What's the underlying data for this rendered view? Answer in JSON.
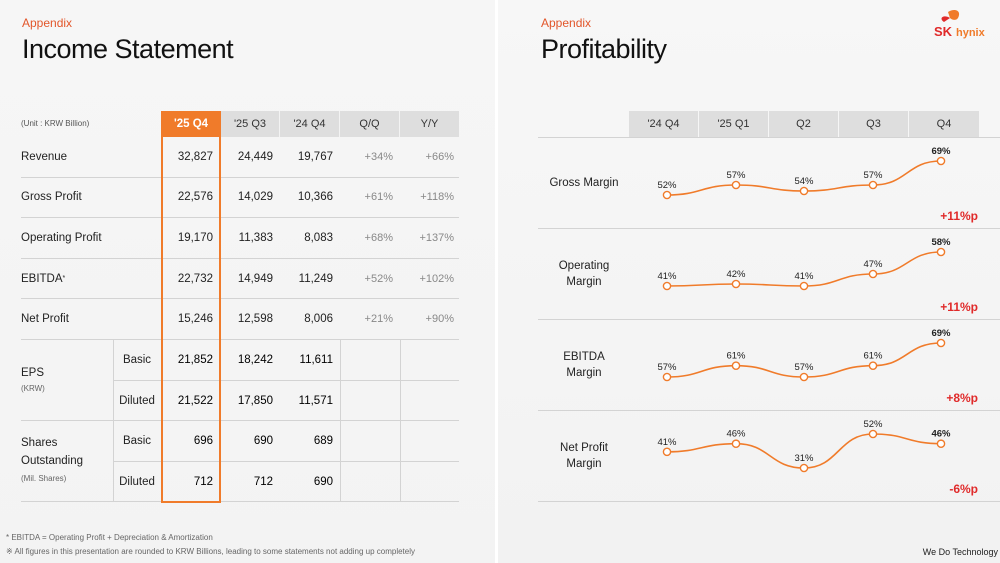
{
  "left": {
    "kicker": "Appendix",
    "title": "Income Statement",
    "unit": "(Unit : KRW Billion)",
    "columns": [
      "'25 Q4",
      "'25 Q3",
      "'24 Q4",
      "Q/Q",
      "Y/Y"
    ],
    "rows": [
      {
        "label": "Revenue",
        "values": [
          "32,827",
          "24,449",
          "19,767",
          "+34%",
          "+66%"
        ]
      },
      {
        "label": "Gross Profit",
        "values": [
          "22,576",
          "14,029",
          "10,366",
          "+61%",
          "+118%"
        ]
      },
      {
        "label": "Operating Profit",
        "values": [
          "19,170",
          "11,383",
          "8,083",
          "+68%",
          "+137%"
        ]
      },
      {
        "label": "EBITDA",
        "label_sup": "*",
        "values": [
          "22,732",
          "14,949",
          "11,249",
          "+52%",
          "+102%"
        ]
      },
      {
        "label": "Net Profit",
        "values": [
          "15,246",
          "12,598",
          "8,006",
          "+21%",
          "+90%"
        ]
      }
    ],
    "eps": {
      "label": "EPS",
      "unit": "(KRW)",
      "basic": {
        "label": "Basic",
        "values": [
          "21,852",
          "18,242",
          "11,611"
        ]
      },
      "diluted": {
        "label": "Diluted",
        "values": [
          "21,522",
          "17,850",
          "11,571"
        ]
      }
    },
    "shares": {
      "label_line1": "Shares",
      "label_line2": "Outstanding",
      "unit": "(Mil. Shares)",
      "basic": {
        "label": "Basic",
        "values": [
          "696",
          "690",
          "689"
        ]
      },
      "diluted": {
        "label": "Diluted",
        "values": [
          "712",
          "712",
          "690"
        ]
      }
    },
    "footnote1": "* EBITDA = Operating Profit + Depreciation & Amortization",
    "footnote2": "※ All figures in this presentation are rounded to KRW Billions, leading to some statements not adding up completely"
  },
  "right": {
    "kicker": "Appendix",
    "title": "Profitability",
    "brand_sk": "SK",
    "brand_hynix": "hynix",
    "tagline": "We Do Technology",
    "colors": {
      "accent": "#f07b2a",
      "negative": "#e02a2a"
    },
    "periods": [
      "'24 Q4",
      "'25 Q1",
      "Q2",
      "Q3",
      "Q4"
    ]
  },
  "chart_data": {
    "type": "line",
    "categories": [
      "'24 Q4",
      "'25 Q1",
      "Q2",
      "Q3",
      "Q4"
    ],
    "series": [
      {
        "name": "Gross Margin",
        "label_lines": [
          "Gross Margin"
        ],
        "values": [
          52,
          57,
          54,
          57,
          69
        ],
        "labels": [
          "52%",
          "57%",
          "54%",
          "57%",
          "69%"
        ],
        "delta": "+11%p"
      },
      {
        "name": "Operating Margin",
        "label_lines": [
          "Operating",
          "Margin"
        ],
        "values": [
          41,
          42,
          41,
          47,
          58
        ],
        "labels": [
          "41%",
          "42%",
          "41%",
          "47%",
          "58%"
        ],
        "delta": "+11%p"
      },
      {
        "name": "EBITDA Margin",
        "label_lines": [
          "EBITDA",
          "Margin"
        ],
        "values": [
          57,
          61,
          57,
          61,
          69
        ],
        "labels": [
          "57%",
          "61%",
          "57%",
          "61%",
          "69%"
        ],
        "delta": "+8%p"
      },
      {
        "name": "Net Profit Margin",
        "label_lines": [
          "Net Profit",
          "Margin"
        ],
        "values": [
          41,
          46,
          31,
          52,
          46
        ],
        "labels": [
          "41%",
          "46%",
          "31%",
          "52%",
          "46%"
        ],
        "delta": "-6%p"
      }
    ]
  }
}
